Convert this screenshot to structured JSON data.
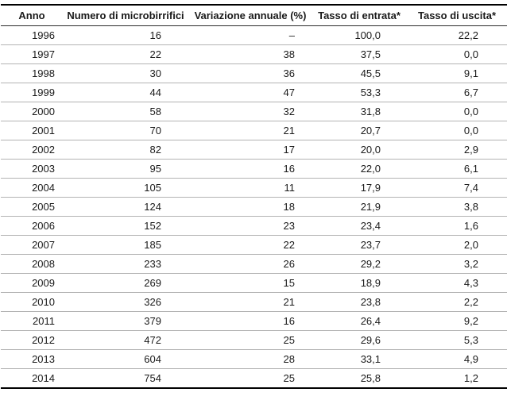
{
  "table": {
    "columns": [
      "Anno",
      "Numero di microbirrifici",
      "Variazione annuale (%)",
      "Tasso di entrata*",
      "Tasso di uscita*"
    ],
    "rows": [
      [
        "1996",
        "16",
        "–",
        "100,0",
        "22,2"
      ],
      [
        "1997",
        "22",
        "38",
        "37,5",
        "0,0"
      ],
      [
        "1998",
        "30",
        "36",
        "45,5",
        "9,1"
      ],
      [
        "1999",
        "44",
        "47",
        "53,3",
        "6,7"
      ],
      [
        "2000",
        "58",
        "32",
        "31,8",
        "0,0"
      ],
      [
        "2001",
        "70",
        "21",
        "20,7",
        "0,0"
      ],
      [
        "2002",
        "82",
        "17",
        "20,0",
        "2,9"
      ],
      [
        "2003",
        "95",
        "16",
        "22,0",
        "6,1"
      ],
      [
        "2004",
        "105",
        "11",
        "17,9",
        "7,4"
      ],
      [
        "2005",
        "124",
        "18",
        "21,9",
        "3,8"
      ],
      [
        "2006",
        "152",
        "23",
        "23,4",
        "1,6"
      ],
      [
        "2007",
        "185",
        "22",
        "23,7",
        "2,0"
      ],
      [
        "2008",
        "233",
        "26",
        "29,2",
        "3,2"
      ],
      [
        "2009",
        "269",
        "15",
        "18,9",
        "4,3"
      ],
      [
        "2010",
        "326",
        "21",
        "23,8",
        "2,2"
      ],
      [
        "2011",
        "379",
        "16",
        "26,4",
        "9,2"
      ],
      [
        "2012",
        "472",
        "25",
        "29,6",
        "5,3"
      ],
      [
        "2013",
        "604",
        "28",
        "33,1",
        "4,9"
      ],
      [
        "2014",
        "754",
        "25",
        "25,8",
        "1,2"
      ]
    ]
  },
  "colors": {
    "strong_border": "#000000",
    "row_divider": "#b3b3b3",
    "text": "#1a1a1a",
    "background": "#ffffff"
  },
  "chart_data": {
    "type": "table",
    "columns": [
      "Anno",
      "Numero di microbirrifici",
      "Variazione annuale (%)",
      "Tasso di entrata*",
      "Tasso di uscita*"
    ],
    "categories": [
      1996,
      1997,
      1998,
      1999,
      2000,
      2001,
      2002,
      2003,
      2004,
      2005,
      2006,
      2007,
      2008,
      2009,
      2010,
      2011,
      2012,
      2013,
      2014
    ],
    "series": [
      {
        "name": "Numero di microbirrifici",
        "values": [
          16,
          22,
          30,
          44,
          58,
          70,
          82,
          95,
          105,
          124,
          152,
          185,
          233,
          269,
          326,
          379,
          472,
          604,
          754
        ]
      },
      {
        "name": "Variazione annuale (%)",
        "values": [
          null,
          38,
          36,
          47,
          32,
          21,
          17,
          16,
          11,
          18,
          23,
          22,
          26,
          15,
          21,
          16,
          25,
          28,
          25
        ]
      },
      {
        "name": "Tasso di entrata*",
        "values": [
          100.0,
          37.5,
          45.5,
          53.3,
          31.8,
          20.7,
          20.0,
          22.0,
          17.9,
          21.9,
          23.4,
          23.7,
          29.2,
          18.9,
          23.8,
          26.4,
          29.6,
          33.1,
          25.8
        ]
      },
      {
        "name": "Tasso di uscita*",
        "values": [
          22.2,
          0.0,
          9.1,
          6.7,
          0.0,
          0.0,
          2.9,
          6.1,
          7.4,
          3.8,
          1.6,
          2.0,
          3.2,
          4.3,
          2.2,
          9.2,
          5.3,
          4.9,
          1.2
        ]
      }
    ],
    "decimal_separator": ",",
    "missing_value_symbol": "–"
  }
}
